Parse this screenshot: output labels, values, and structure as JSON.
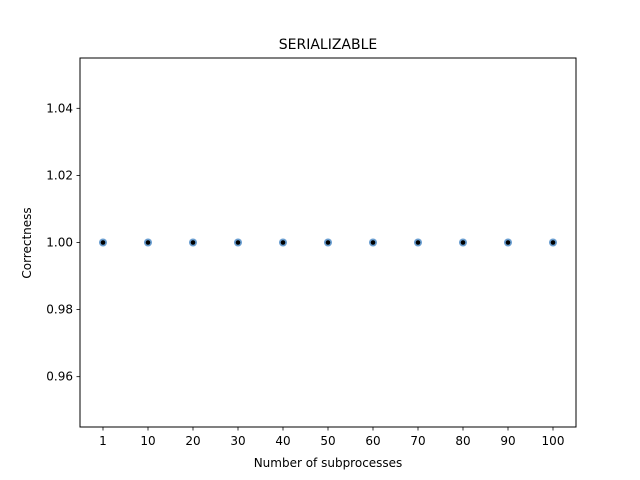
{
  "chart_data": {
    "type": "scatter",
    "title": "SERIALIZABLE",
    "xlabel": "Number of subprocesses",
    "ylabel": "Correctness",
    "categories": [
      "1",
      "10",
      "20",
      "30",
      "40",
      "50",
      "60",
      "70",
      "80",
      "90",
      "100"
    ],
    "series": [
      {
        "values": [
          1.0,
          1.0,
          1.0,
          1.0,
          1.0,
          1.0,
          1.0,
          1.0,
          1.0,
          1.0,
          1.0
        ],
        "marker_color": "#000000",
        "marker_edge_color": "#6a9ed0"
      }
    ],
    "ylim": [
      0.945,
      1.055
    ],
    "yticks": [
      0.96,
      0.98,
      1.0,
      1.02,
      1.04
    ],
    "ytick_labels": [
      "0.96",
      "0.98",
      "1.00",
      "1.02",
      "1.04"
    ],
    "grid": false,
    "legend": "none"
  }
}
